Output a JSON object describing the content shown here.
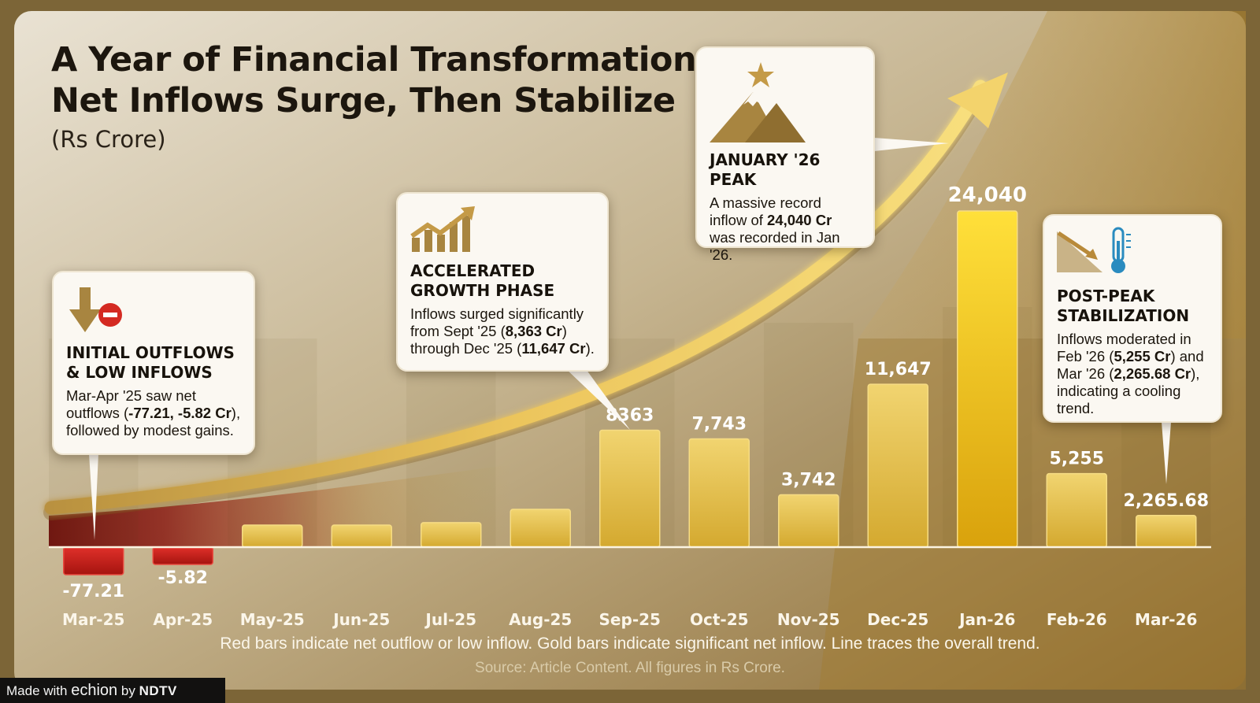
{
  "title_lines": [
    "A Year of Financial Transformation:",
    "Net Inflows Surge, Then Stabilize"
  ],
  "subtitle": "(Rs Crore)",
  "chart_data": {
    "type": "bar",
    "categories": [
      "Mar-25",
      "Apr-25",
      "May-25",
      "Jun-25",
      "Jul-25",
      "Aug-25",
      "Sep-25",
      "Oct-25",
      "Nov-25",
      "Dec-25",
      "Jan-26",
      "Feb-26",
      "Mar-26"
    ],
    "values": [
      -77.21,
      -5.82,
      null,
      null,
      null,
      null,
      8363,
      7743,
      3742,
      11647,
      24040,
      5255,
      2265.68
    ],
    "value_labels": [
      "-77.21",
      "-5.82",
      "",
      "",
      "",
      "",
      "8363",
      "7,743",
      "3,742",
      "11,647",
      "24,040",
      "5,255",
      "2,265.68"
    ],
    "estimated_unlabeled": {
      "May-25": 500,
      "Jun-25": 1000,
      "Jul-25": 1750,
      "Aug-25": 2700
    },
    "ylim": [
      -77.21,
      24040
    ],
    "xlabel": "",
    "ylabel": "",
    "trend_line": "overall upward trend arrow",
    "legend": "none",
    "grid": false
  },
  "callouts": {
    "initial": {
      "title_lines": [
        "INITIAL OUTFLOWS",
        "& LOW INFLOWS"
      ],
      "t1": "Mar-Apr '25 saw net outflows (",
      "b1": "-77.21, -5.82 Cr",
      "t2": "), followed by modest gains."
    },
    "growth": {
      "title_lines": [
        "ACCELERATED",
        "GROWTH PHASE"
      ],
      "t1": "Inflows surged significantly from Sept '25 (",
      "b1": "8,363 Cr",
      "t2": ") through Dec '25 (",
      "b2": "11,647 Cr",
      "t3": ")."
    },
    "peak": {
      "title": "JANUARY '26 PEAK",
      "t1": "A massive record inflow of ",
      "b1": "24,040 Cr",
      "t2": " was recorded in Jan '26."
    },
    "stabilization": {
      "title_lines": [
        "POST-PEAK",
        "STABILIZATION"
      ],
      "t1": "Inflows moderated in Feb '26 (",
      "b1": "5,255 Cr",
      "t2": ") and Mar '26 (",
      "b2": "2,265.68 Cr",
      "t3": "), indicating a cooling trend."
    }
  },
  "footer_note": "Red bars indicate net outflow or low inflow. Gold bars indicate significant net inflow. Line traces the overall trend.",
  "source_note": "Source: Article Content. All figures in Rs Crore.",
  "badge": {
    "made_with": "Made with",
    "brand": "echion",
    "by": "by",
    "publisher": "NDTV"
  },
  "colors": {
    "outflow_red": "#c3221c",
    "low_inflow_red": "#b0281f",
    "gold": "#e7c148",
    "peak_gold": "#f6cf22",
    "label_text": "#ffffff",
    "title_text": "#1c160e"
  }
}
